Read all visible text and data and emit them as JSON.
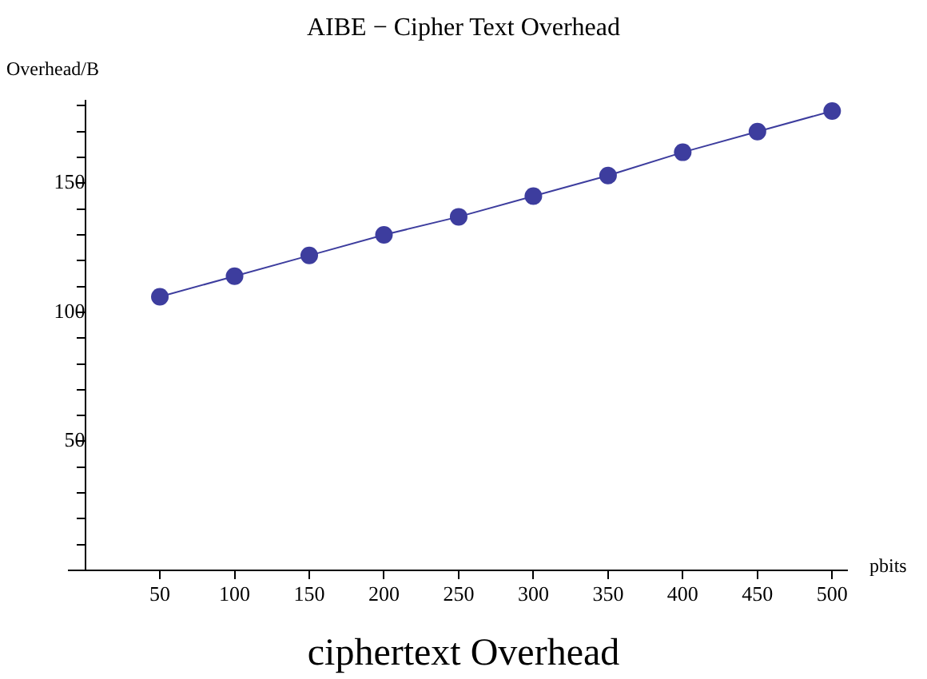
{
  "chart_data": {
    "type": "line",
    "title": "AIBE − Cipher Text Overhead",
    "xlabel": "pbits",
    "ylabel": "Overhead/B",
    "annotations": [
      "ciphertext Overhead"
    ],
    "x": [
      50,
      100,
      150,
      200,
      250,
      300,
      350,
      400,
      450,
      500
    ],
    "series": [
      {
        "color": "#3d3d9e",
        "values": [
          106,
          114,
          122,
          130,
          137,
          145,
          153,
          162,
          170,
          178
        ]
      }
    ],
    "xlim": [
      -11,
      510
    ],
    "ylim": [
      0,
      182
    ],
    "xticks": [
      50,
      100,
      150,
      200,
      250,
      300,
      350,
      400,
      450,
      500
    ],
    "yticks": [
      {
        "value": 10,
        "label": null
      },
      {
        "value": 20,
        "label": null
      },
      {
        "value": 30,
        "label": null
      },
      {
        "value": 40,
        "label": null
      },
      50,
      {
        "value": 60,
        "label": null
      },
      {
        "value": 70,
        "label": null
      },
      {
        "value": 80,
        "label": null
      },
      {
        "value": 90,
        "label": null
      },
      100,
      {
        "value": 110,
        "label": null
      },
      {
        "value": 120,
        "label": null
      },
      {
        "value": 130,
        "label": null
      },
      {
        "value": 140,
        "label": null
      },
      150,
      {
        "value": 160,
        "label": null
      },
      {
        "value": 170,
        "label": null
      },
      {
        "value": 180,
        "label": null
      }
    ],
    "grid": false,
    "marker": "circle",
    "line_style": "solid"
  }
}
